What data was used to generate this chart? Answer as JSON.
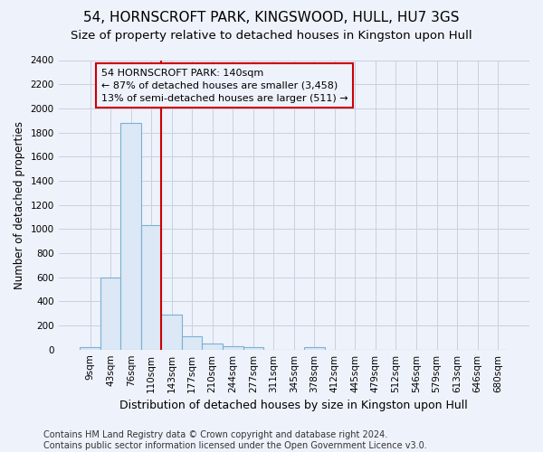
{
  "title1": "54, HORNSCROFT PARK, KINGSWOOD, HULL, HU7 3GS",
  "title2": "Size of property relative to detached houses in Kingston upon Hull",
  "xlabel": "Distribution of detached houses by size in Kingston upon Hull",
  "ylabel": "Number of detached properties",
  "footer": "Contains HM Land Registry data © Crown copyright and database right 2024.\nContains public sector information licensed under the Open Government Licence v3.0.",
  "bin_labels": [
    "9sqm",
    "43sqm",
    "76sqm",
    "110sqm",
    "143sqm",
    "177sqm",
    "210sqm",
    "244sqm",
    "277sqm",
    "311sqm",
    "345sqm",
    "378sqm",
    "412sqm",
    "445sqm",
    "479sqm",
    "512sqm",
    "546sqm",
    "579sqm",
    "613sqm",
    "646sqm",
    "680sqm"
  ],
  "bar_values": [
    20,
    600,
    1880,
    1030,
    290,
    110,
    48,
    30,
    20,
    0,
    0,
    20,
    0,
    0,
    0,
    0,
    0,
    0,
    0,
    0,
    0
  ],
  "bar_color": "#dce8f5",
  "bar_edge_color": "#7ab0d4",
  "vline_x_idx": 4,
  "vline_color": "#cc0000",
  "annotation_text": "54 HORNSCROFT PARK: 140sqm\n← 87% of detached houses are smaller (3,458)\n13% of semi-detached houses are larger (511) →",
  "ylim": [
    0,
    2400
  ],
  "yticks": [
    0,
    200,
    400,
    600,
    800,
    1000,
    1200,
    1400,
    1600,
    1800,
    2000,
    2200,
    2400
  ],
  "background_color": "#eef2fb",
  "plot_bg_color": "#eef2fb",
  "grid_color": "#c8d0e0",
  "title1_fontsize": 11,
  "title2_fontsize": 9.5,
  "xlabel_fontsize": 9,
  "ylabel_fontsize": 8.5,
  "tick_fontsize": 7.5,
  "footer_fontsize": 7,
  "ann_fontsize": 8
}
